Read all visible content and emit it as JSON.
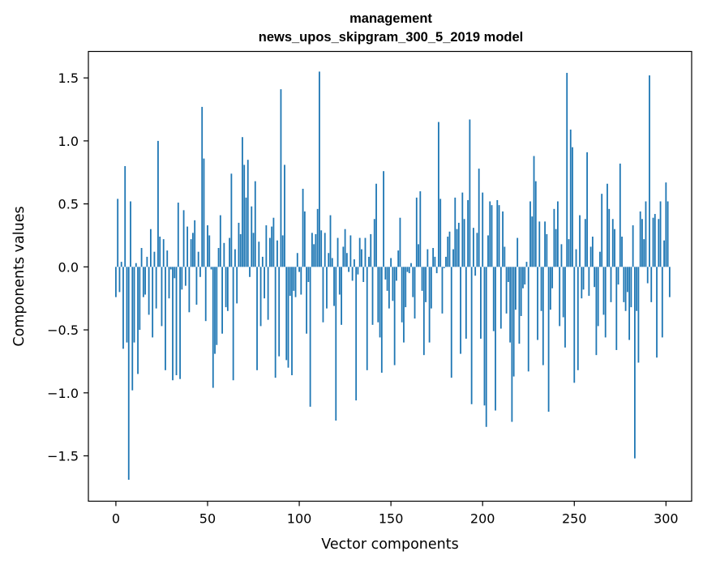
{
  "chart_data": {
    "type": "bar",
    "title": "management",
    "subtitle": "news_upos_skipgram_300_5_2019 model",
    "xlabel": "Vector components",
    "ylabel": "Components values",
    "xlim": [
      -15,
      314
    ],
    "ylim": [
      -1.86,
      1.71
    ],
    "xticks": [
      0,
      50,
      100,
      150,
      200,
      250,
      300
    ],
    "xtick_labels": [
      "0",
      "50",
      "100",
      "150",
      "200",
      "250",
      "300"
    ],
    "yticks": [
      -1.5,
      -1.0,
      -0.5,
      0.0,
      0.5,
      1.0,
      1.5
    ],
    "ytick_labels": [
      "−1.5",
      "−1.0",
      "−0.5",
      "0.0",
      "0.5",
      "1.0",
      "1.5"
    ],
    "bar_color": "#1f77b4",
    "grid": false,
    "values": [
      -0.24,
      0.54,
      -0.2,
      0.04,
      -0.65,
      0.8,
      -0.6,
      -1.69,
      0.52,
      -0.98,
      -0.6,
      0.03,
      -0.85,
      -0.5,
      0.15,
      -0.24,
      -0.22,
      0.08,
      -0.38,
      0.3,
      -0.56,
      0.12,
      -0.33,
      1.0,
      0.24,
      -0.47,
      0.22,
      -0.82,
      0.13,
      -0.25,
      -0.02,
      -0.9,
      -0.09,
      -0.86,
      0.51,
      -0.89,
      -0.18,
      0.45,
      -0.15,
      0.32,
      -0.36,
      0.22,
      0.27,
      0.37,
      -0.3,
      0.12,
      -0.08,
      1.27,
      0.86,
      -0.43,
      0.33,
      0.25,
      -0.02,
      -0.96,
      -0.69,
      -0.62,
      0.15,
      0.41,
      -0.53,
      0.19,
      -0.32,
      -0.35,
      0.23,
      0.74,
      -0.9,
      0.14,
      -0.29,
      0.35,
      0.26,
      1.03,
      0.81,
      0.55,
      0.85,
      -0.08,
      0.48,
      0.27,
      0.68,
      -0.82,
      0.2,
      -0.47,
      0.08,
      -0.25,
      0.33,
      -0.42,
      0.23,
      0.32,
      0.39,
      -0.88,
      0.21,
      -0.71,
      1.41,
      0.25,
      0.81,
      -0.74,
      -0.8,
      -0.23,
      -0.86,
      -0.19,
      -0.24,
      0.11,
      -0.04,
      -0.22,
      0.62,
      0.44,
      -0.53,
      -0.12,
      -1.11,
      0.27,
      0.18,
      0.26,
      0.46,
      1.55,
      0.29,
      -0.44,
      0.27,
      -0.33,
      0.11,
      0.41,
      0.07,
      -0.31,
      -1.22,
      0.23,
      -0.22,
      -0.46,
      0.16,
      0.3,
      0.11,
      -0.04,
      0.25,
      -0.11,
      0.06,
      -1.06,
      -0.06,
      0.23,
      0.14,
      -0.12,
      0.23,
      -0.82,
      0.08,
      0.26,
      -0.46,
      0.38,
      0.66,
      -0.44,
      -0.56,
      -0.84,
      0.76,
      -0.1,
      -0.19,
      -0.33,
      0.07,
      -0.27,
      -0.78,
      -0.11,
      0.13,
      0.39,
      -0.44,
      -0.6,
      -0.32,
      -0.04,
      -0.05,
      0.03,
      -0.24,
      -0.41,
      0.55,
      0.18,
      0.6,
      -0.19,
      -0.7,
      -0.28,
      0.14,
      -0.6,
      -0.33,
      0.15,
      0.08,
      -0.05,
      1.15,
      0.54,
      -0.37,
      -0.01,
      0.08,
      0.24,
      0.28,
      -0.88,
      0.14,
      0.55,
      0.3,
      0.35,
      -0.69,
      0.59,
      0.38,
      -0.57,
      0.53,
      1.17,
      -1.09,
      0.31,
      -0.07,
      0.27,
      0.78,
      -0.57,
      0.59,
      -1.1,
      -1.27,
      0.25,
      0.52,
      0.49,
      -0.51,
      -1.14,
      0.53,
      0.49,
      -0.49,
      0.44,
      0.16,
      -0.37,
      -0.12,
      -0.6,
      -1.23,
      -0.87,
      -0.34,
      0.23,
      -0.61,
      -0.39,
      -0.17,
      -0.14,
      0.04,
      -0.83,
      0.52,
      0.4,
      0.88,
      0.68,
      -0.58,
      0.36,
      -0.35,
      -0.78,
      0.36,
      0.26,
      -1.15,
      -0.34,
      -0.17,
      0.46,
      0.3,
      0.52,
      -0.47,
      0.18,
      -0.4,
      -0.64,
      1.54,
      0.22,
      1.09,
      0.95,
      -0.92,
      0.14,
      -0.82,
      0.41,
      -0.25,
      -0.18,
      0.38,
      0.91,
      -0.23,
      0.16,
      0.24,
      -0.16,
      -0.7,
      -0.47,
      0.12,
      0.58,
      -0.38,
      -0.56,
      0.66,
      0.46,
      -0.28,
      0.38,
      0.3,
      -0.66,
      -0.14,
      0.82,
      0.24,
      -0.28,
      -0.35,
      -0.2,
      -0.58,
      -0.32,
      0.33,
      -1.52,
      -0.35,
      -0.76,
      0.44,
      0.38,
      0.22,
      0.52,
      -0.13,
      1.52,
      -0.28,
      0.39,
      0.42,
      -0.72,
      0.38,
      0.52,
      -0.56,
      0.21,
      0.67,
      0.52,
      -0.24
    ]
  }
}
